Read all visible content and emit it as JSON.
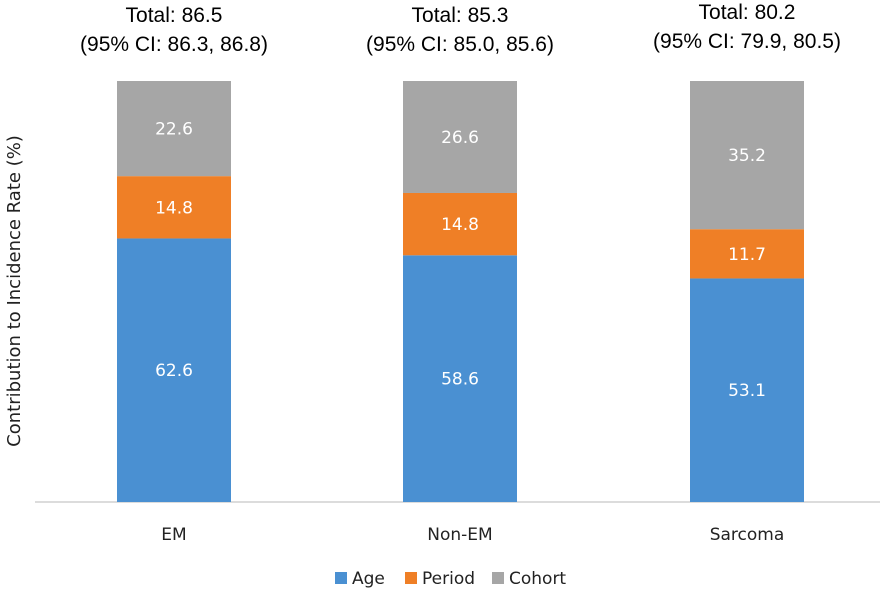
{
  "chart_data": {
    "type": "bar",
    "stacked": true,
    "categories": [
      "EM",
      "Non-EM",
      "Sarcoma"
    ],
    "series": [
      {
        "name": "Age",
        "values": [
          62.6,
          58.6,
          53.1
        ],
        "color": "#4a90d2"
      },
      {
        "name": "Period",
        "values": [
          14.8,
          14.8,
          11.7
        ],
        "color": "#ef7f26"
      },
      {
        "name": "Cohort",
        "values": [
          22.6,
          26.6,
          35.2
        ],
        "color": "#a6a6a6"
      }
    ],
    "totals": [
      {
        "line1": "Total: 86.5",
        "line2": "(95% CI: 86.3, 86.8)"
      },
      {
        "line1": "Total: 85.3",
        "line2": "(95% CI: 85.0, 85.6)"
      },
      {
        "line1": "Total: 80.2",
        "line2": "(95% CI: 79.9, 80.5)"
      }
    ],
    "ylabel": "Contribution to Incidence Rate (%)",
    "xlabel": "",
    "ylim": [
      0,
      100
    ],
    "grid": false,
    "legend": "bottom"
  }
}
